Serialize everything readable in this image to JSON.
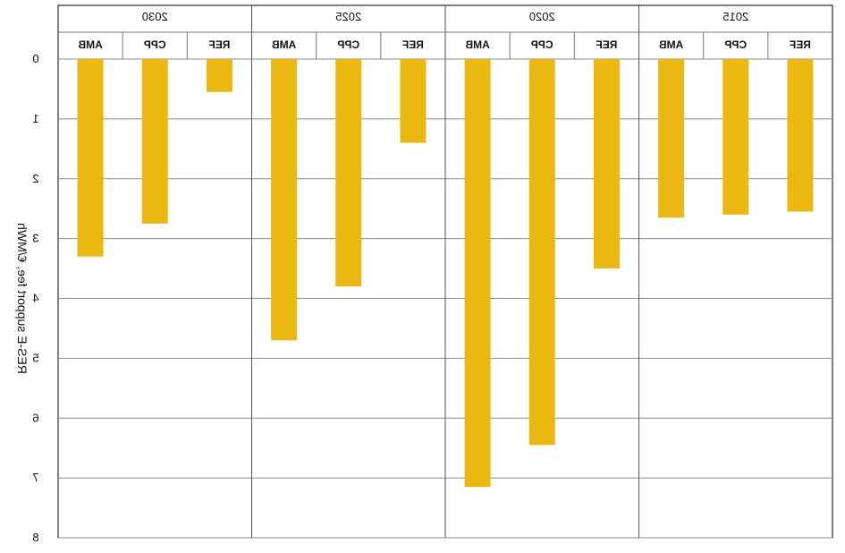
{
  "chart_data": {
    "type": "bar",
    "mirrored": true,
    "ylabel": "RES-E support fee, €/MWh",
    "ylim": [
      0,
      8
    ],
    "y_ticks": [
      "0",
      "1",
      "2",
      "3",
      "4",
      "5",
      "6",
      "7",
      "8"
    ],
    "groups": [
      {
        "year": "2015",
        "categories": [
          "REF",
          "CPP",
          "AMB"
        ],
        "values": [
          2.55,
          2.6,
          2.65
        ]
      },
      {
        "year": "2020",
        "categories": [
          "REF",
          "CPP",
          "AMB"
        ],
        "values": [
          3.5,
          6.45,
          7.15
        ]
      },
      {
        "year": "2025",
        "categories": [
          "REF",
          "CPP",
          "AMB"
        ],
        "values": [
          1.4,
          3.8,
          4.7
        ]
      },
      {
        "year": "2030",
        "categories": [
          "REF",
          "CPP",
          "AMB"
        ],
        "values": [
          0.55,
          2.75,
          3.3
        ]
      }
    ],
    "bar_color": "#ebb812",
    "grid": true
  }
}
